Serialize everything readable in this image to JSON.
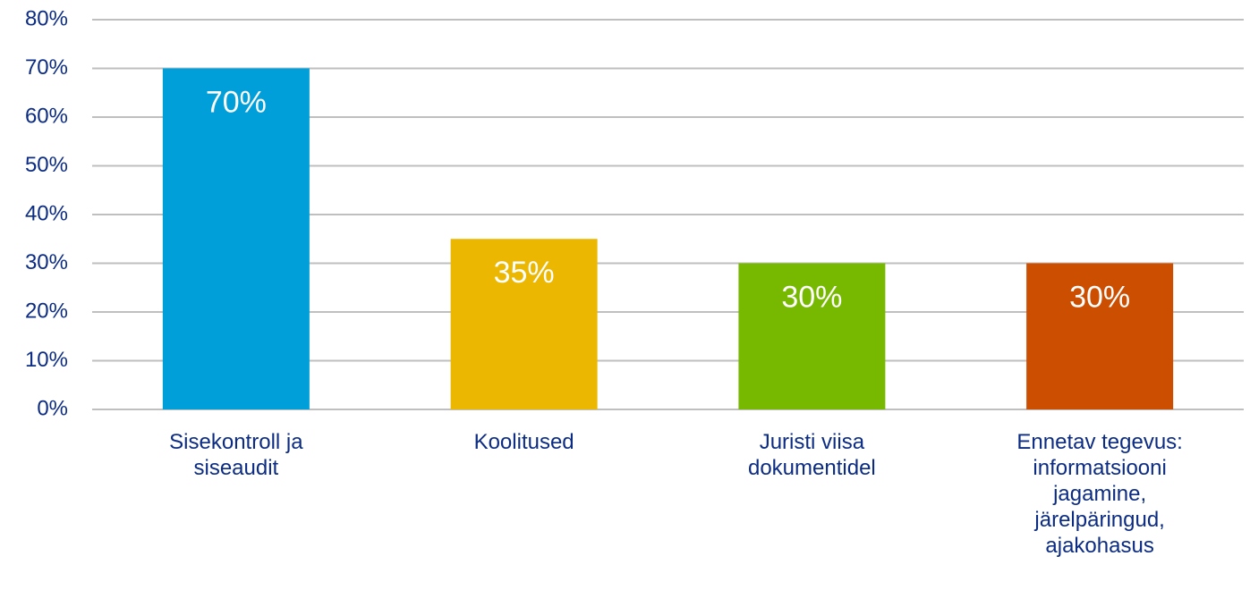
{
  "chart_data": {
    "type": "bar",
    "categories": [
      "Sisekontroll ja siseaudit",
      "Koolitused",
      "Juristi viisa dokumentidel",
      "Ennetav tegevus: informatsiooni jagamine, järelpäringud, ajakohasus"
    ],
    "values": [
      70,
      35,
      30,
      30
    ],
    "value_labels": [
      "70%",
      "35%",
      "30%",
      "30%"
    ],
    "colors": [
      "#009fda",
      "#ebb700",
      "#77b900",
      "#cc4e00"
    ],
    "ylim": [
      0,
      80
    ],
    "yticks": [
      {
        "value": 0,
        "label": "0%"
      },
      {
        "value": 10,
        "label": "10%"
      },
      {
        "value": 20,
        "label": "20%"
      },
      {
        "value": 30,
        "label": "30%"
      },
      {
        "value": 40,
        "label": "40%"
      },
      {
        "value": 50,
        "label": "50%"
      },
      {
        "value": 60,
        "label": "60%"
      },
      {
        "value": 70,
        "label": "70%"
      },
      {
        "value": 80,
        "label": "80%"
      }
    ],
    "grid": true
  }
}
